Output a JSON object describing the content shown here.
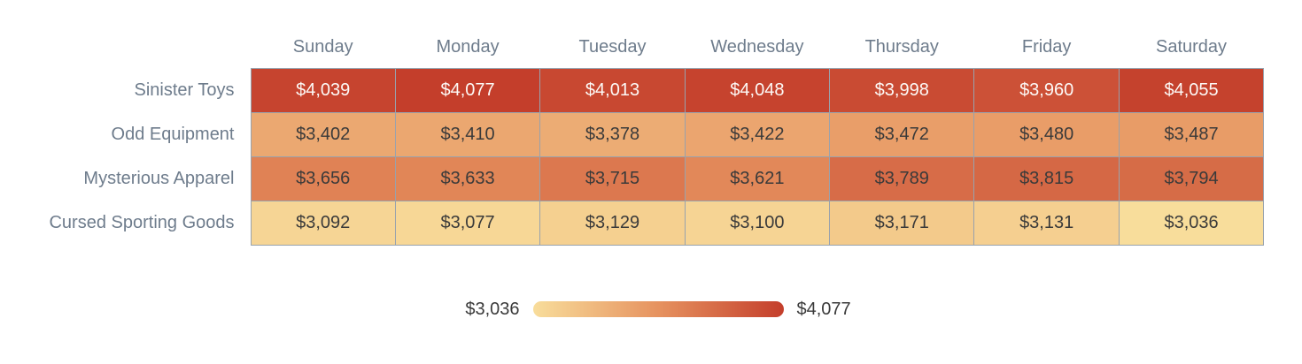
{
  "chart_data": {
    "type": "heatmap",
    "columns": [
      "Sunday",
      "Monday",
      "Tuesday",
      "Wednesday",
      "Thursday",
      "Friday",
      "Saturday"
    ],
    "rows": [
      "Sinister Toys",
      "Odd Equipment",
      "Mysterious Apparel",
      "Cursed Sporting Goods"
    ],
    "values": [
      [
        4039,
        4077,
        4013,
        4048,
        3998,
        3960,
        4055
      ],
      [
        3402,
        3410,
        3378,
        3422,
        3472,
        3480,
        3487
      ],
      [
        3656,
        3633,
        3715,
        3621,
        3789,
        3815,
        3794
      ],
      [
        3092,
        3077,
        3129,
        3100,
        3171,
        3131,
        3036
      ]
    ],
    "value_prefix": "$",
    "min": 3036,
    "max": 4077,
    "legend": {
      "min_label": "$3,036",
      "max_label": "$4,077"
    },
    "colormap_stops": [
      "#f8dd9b",
      "#e6925f",
      "#c43e2b"
    ],
    "colors": {
      "header_text": "#6e7c8c",
      "row_label_text": "#6e7c8c",
      "cell_border": "#98a2ad",
      "cell_text_dark": "#3a3a3a",
      "cell_text_light": "#fdfaf7",
      "legend_text": "#3a3a3a",
      "background": "#ffffff"
    },
    "grid": true,
    "legend_position": "bottom-center"
  }
}
